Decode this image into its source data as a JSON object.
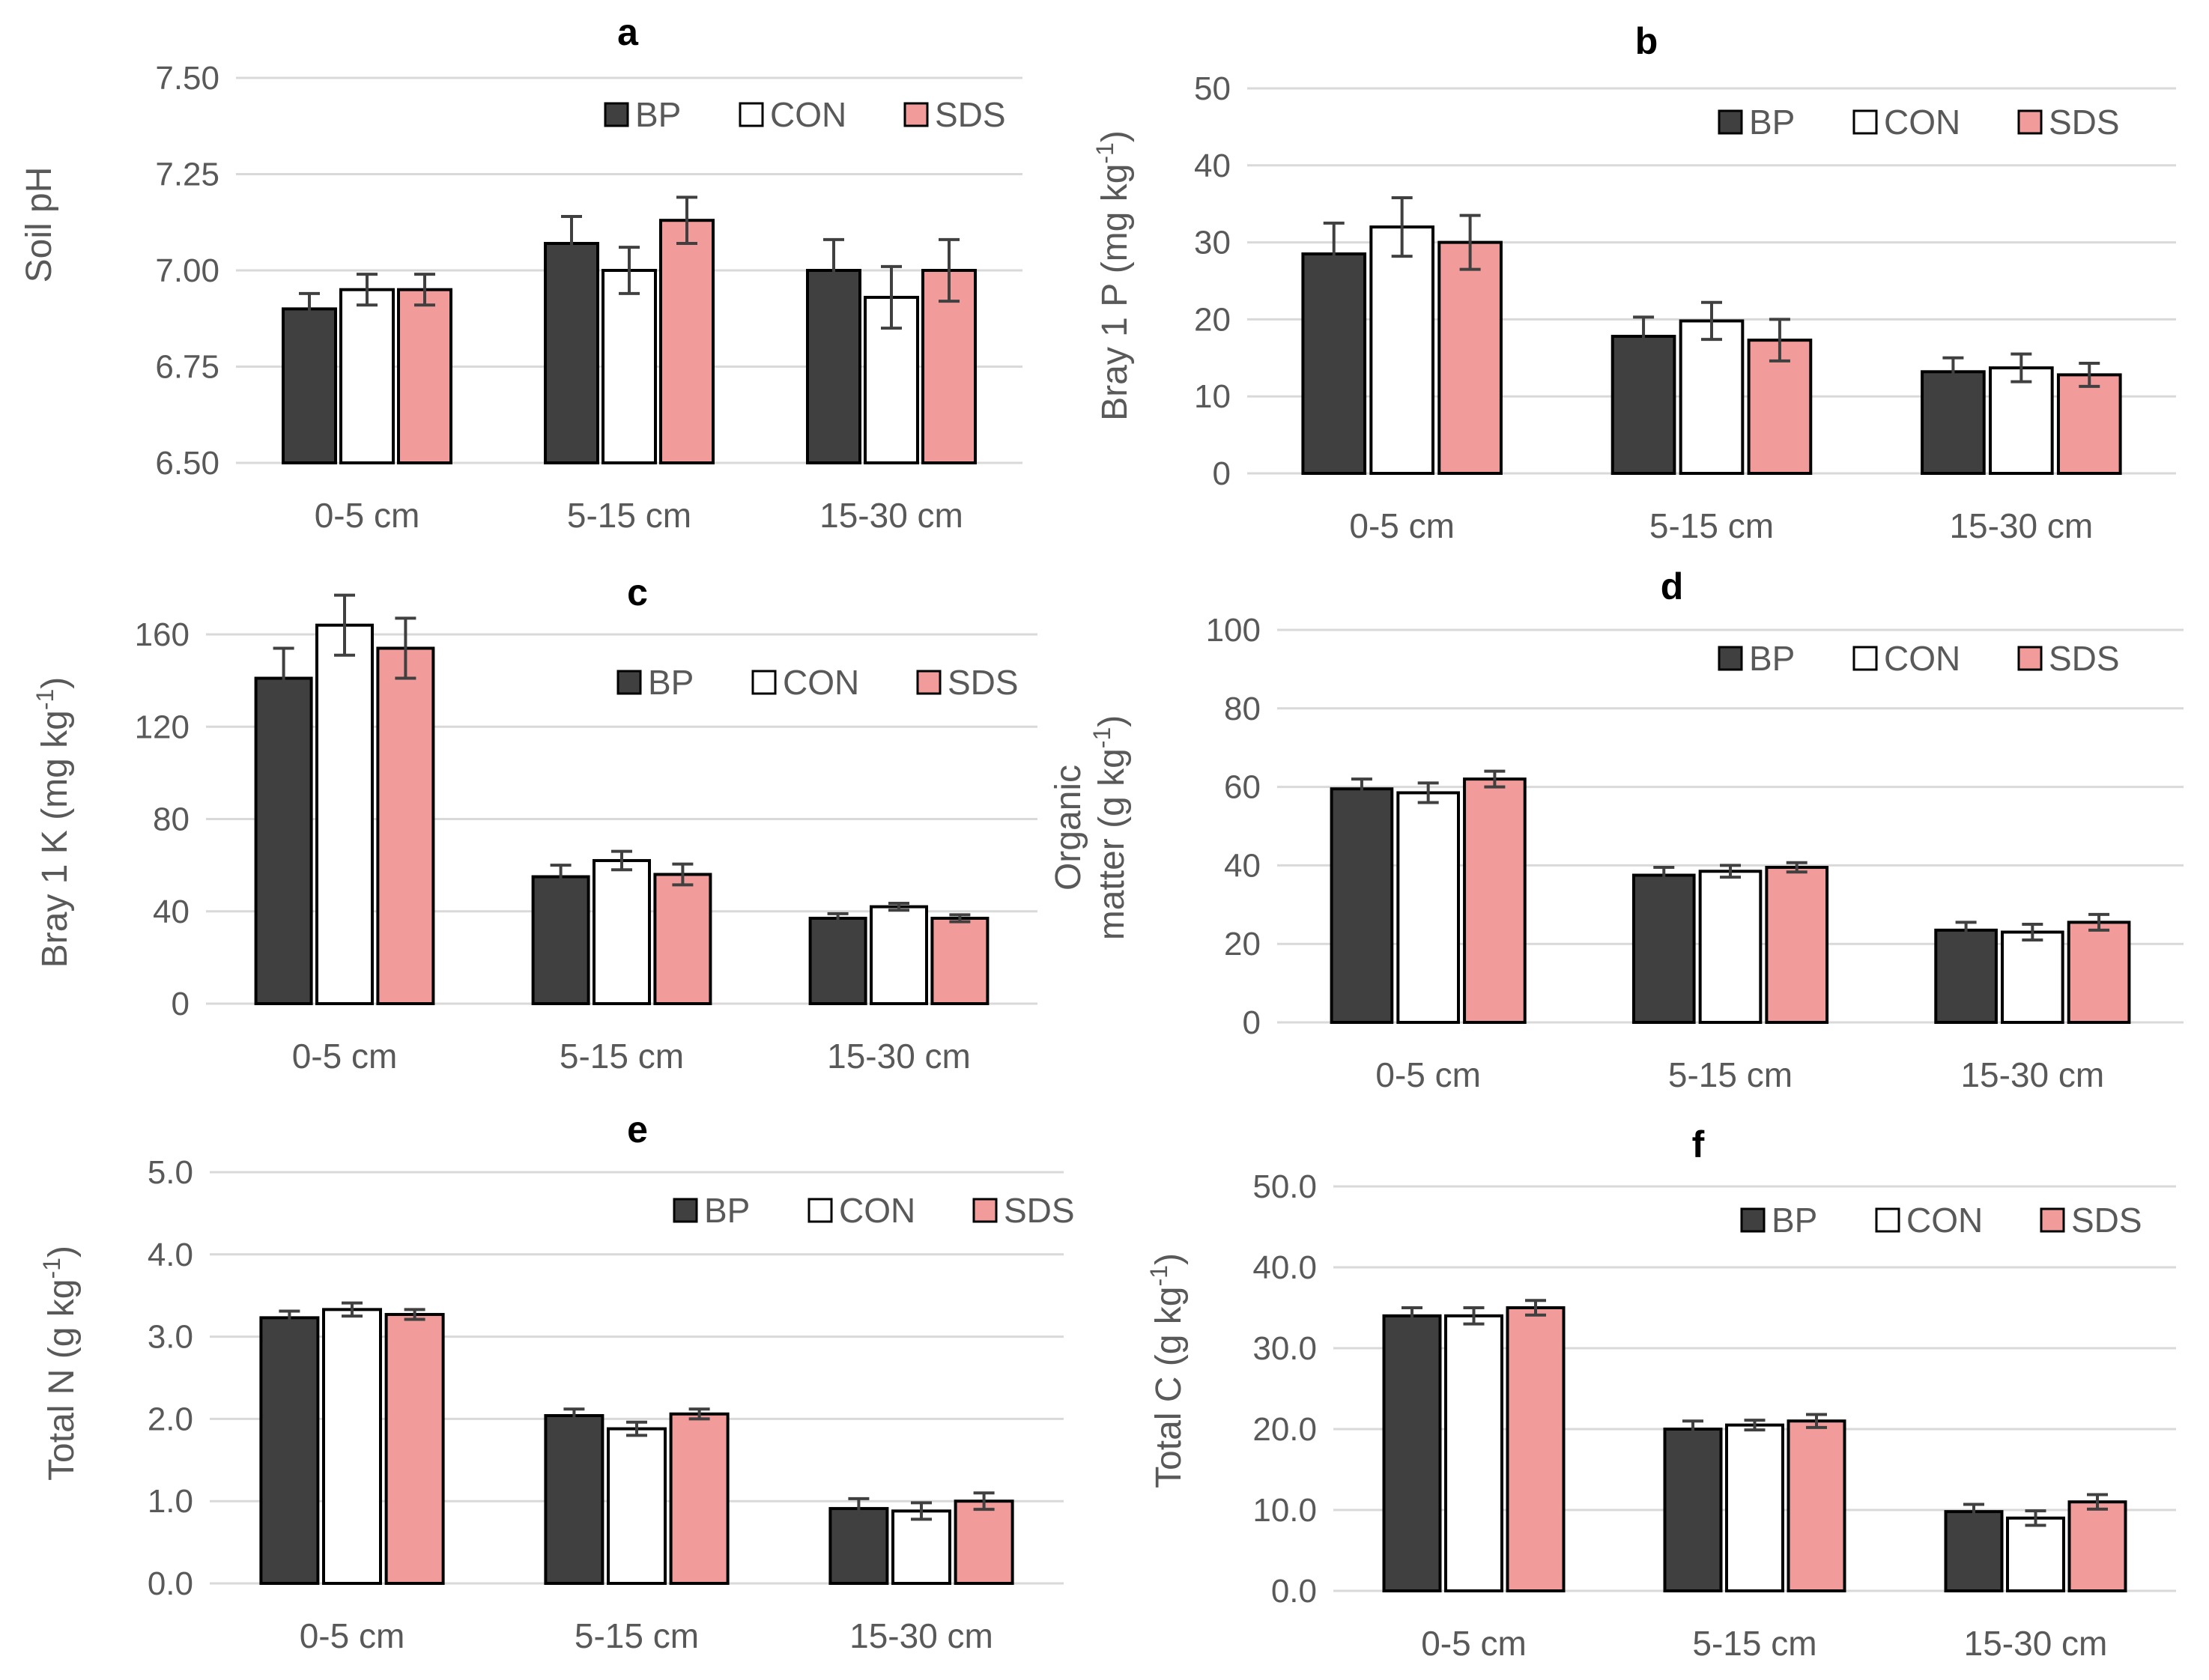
{
  "figure": {
    "description_label": "Soil property bar charts by depth and treatment"
  },
  "colors": {
    "BP": "#404040",
    "CON": "#ffffff",
    "SDS": "#f19c9a"
  },
  "chart_data": [
    {
      "id": "a",
      "type": "bar",
      "title": "a",
      "ylabel_lines": [
        [
          "Soil pH"
        ]
      ],
      "categories": [
        "0-5 cm",
        "5-15 cm",
        "15-30 cm"
      ],
      "ylim": [
        6.5,
        7.5
      ],
      "ticks": [
        "6.50",
        "6.75",
        "7.00",
        "7.25",
        "7.50"
      ],
      "series": [
        {
          "name": "BP",
          "values": [
            6.9,
            7.07,
            7.0
          ],
          "errors": [
            0.04,
            0.07,
            0.08
          ]
        },
        {
          "name": "CON",
          "values": [
            6.95,
            7.0,
            6.93
          ],
          "errors": [
            0.04,
            0.06,
            0.08
          ]
        },
        {
          "name": "SDS",
          "values": [
            6.95,
            7.13,
            7.0
          ],
          "errors": [
            0.04,
            0.06,
            0.08
          ]
        }
      ],
      "legend": [
        "BP",
        "CON",
        "SDS"
      ],
      "legend_position": "top-right",
      "grid": true
    },
    {
      "id": "b",
      "type": "bar",
      "title": "b",
      "ylabel_lines": [
        [
          "Bray 1 P (mg kg",
          "-1",
          ")"
        ]
      ],
      "categories": [
        "0-5 cm",
        "5-15 cm",
        "15-30 cm"
      ],
      "ylim": [
        0,
        50
      ],
      "ticks": [
        "0",
        "10",
        "20",
        "30",
        "40",
        "50"
      ],
      "series": [
        {
          "name": "BP",
          "values": [
            28.5,
            17.8,
            13.2
          ],
          "errors": [
            4.0,
            2.5,
            1.8
          ]
        },
        {
          "name": "CON",
          "values": [
            32.0,
            19.8,
            13.7
          ],
          "errors": [
            3.8,
            2.4,
            1.8
          ]
        },
        {
          "name": "SDS",
          "values": [
            30.0,
            17.3,
            12.8
          ],
          "errors": [
            3.5,
            2.7,
            1.5
          ]
        }
      ],
      "legend": [
        "BP",
        "CON",
        "SDS"
      ],
      "legend_position": "top-right",
      "grid": true
    },
    {
      "id": "c",
      "type": "bar",
      "title": "c",
      "ylabel_lines": [
        [
          "Bray 1 K (mg kg",
          "-1",
          ")"
        ]
      ],
      "categories": [
        "0-5 cm",
        "5-15 cm",
        "15-30 cm"
      ],
      "ylim": [
        0,
        160
      ],
      "ticks": [
        "0",
        "40",
        "80",
        "120",
        "160"
      ],
      "series": [
        {
          "name": "BP",
          "values": [
            141,
            55,
            37
          ],
          "errors": [
            13,
            5,
            2
          ]
        },
        {
          "name": "CON",
          "values": [
            164,
            62,
            42
          ],
          "errors": [
            13,
            4,
            1.5
          ]
        },
        {
          "name": "SDS",
          "values": [
            154,
            56,
            37
          ],
          "errors": [
            13,
            4.5,
            1.5
          ]
        }
      ],
      "legend": [
        "BP",
        "CON",
        "SDS"
      ],
      "legend_position": "top-right",
      "grid": true
    },
    {
      "id": "d",
      "type": "bar",
      "title": "d",
      "ylabel_lines": [
        [
          "Organic"
        ],
        [
          "matter (g kg",
          "-1",
          ")"
        ]
      ],
      "categories": [
        "0-5 cm",
        "5-15 cm",
        "15-30 cm"
      ],
      "ylim": [
        0,
        100
      ],
      "ticks": [
        "0",
        "20",
        "40",
        "60",
        "80",
        "100"
      ],
      "series": [
        {
          "name": "BP",
          "values": [
            59.5,
            37.5,
            23.5
          ],
          "errors": [
            2.5,
            2,
            2
          ]
        },
        {
          "name": "CON",
          "values": [
            58.5,
            38.5,
            23.0
          ],
          "errors": [
            2.5,
            1.5,
            2
          ]
        },
        {
          "name": "SDS",
          "values": [
            62.0,
            39.5,
            25.5
          ],
          "errors": [
            2,
            1.2,
            2
          ]
        }
      ],
      "legend": [
        "BP",
        "CON",
        "SDS"
      ],
      "legend_position": "top-right",
      "grid": true
    },
    {
      "id": "e",
      "type": "bar",
      "title": "e",
      "ylabel_lines": [
        [
          "Total N (g kg",
          "-1",
          ")"
        ]
      ],
      "categories": [
        "0-5 cm",
        "5-15 cm",
        "15-30 cm"
      ],
      "ylim": [
        0,
        5
      ],
      "ticks": [
        "0.0",
        "1.0",
        "2.0",
        "3.0",
        "4.0",
        "5.0"
      ],
      "series": [
        {
          "name": "BP",
          "values": [
            3.23,
            2.04,
            0.91
          ],
          "errors": [
            0.08,
            0.08,
            0.12
          ]
        },
        {
          "name": "CON",
          "values": [
            3.33,
            1.88,
            0.88
          ],
          "errors": [
            0.08,
            0.08,
            0.1
          ]
        },
        {
          "name": "SDS",
          "values": [
            3.27,
            2.06,
            1.0
          ],
          "errors": [
            0.06,
            0.06,
            0.1
          ]
        }
      ],
      "legend": [
        "BP",
        "CON",
        "SDS"
      ],
      "legend_position": "top-right",
      "grid": true
    },
    {
      "id": "f",
      "type": "bar",
      "title": "f",
      "ylabel_lines": [
        [
          "Total C (g kg",
          "-1",
          ")"
        ]
      ],
      "categories": [
        "0-5 cm",
        "5-15 cm",
        "15-30 cm"
      ],
      "ylim": [
        0,
        50
      ],
      "ticks": [
        "0.0",
        "10.0",
        "20.0",
        "30.0",
        "40.0",
        "50.0"
      ],
      "series": [
        {
          "name": "BP",
          "values": [
            34.0,
            20.0,
            9.8
          ],
          "errors": [
            1.0,
            1.0,
            0.9
          ]
        },
        {
          "name": "CON",
          "values": [
            34.0,
            20.5,
            9.0
          ],
          "errors": [
            1.0,
            0.6,
            0.9
          ]
        },
        {
          "name": "SDS",
          "values": [
            35.0,
            21.0,
            11.0
          ],
          "errors": [
            0.9,
            0.8,
            0.9
          ]
        }
      ],
      "legend": [
        "BP",
        "CON",
        "SDS"
      ],
      "legend_position": "top-right",
      "grid": true
    }
  ]
}
